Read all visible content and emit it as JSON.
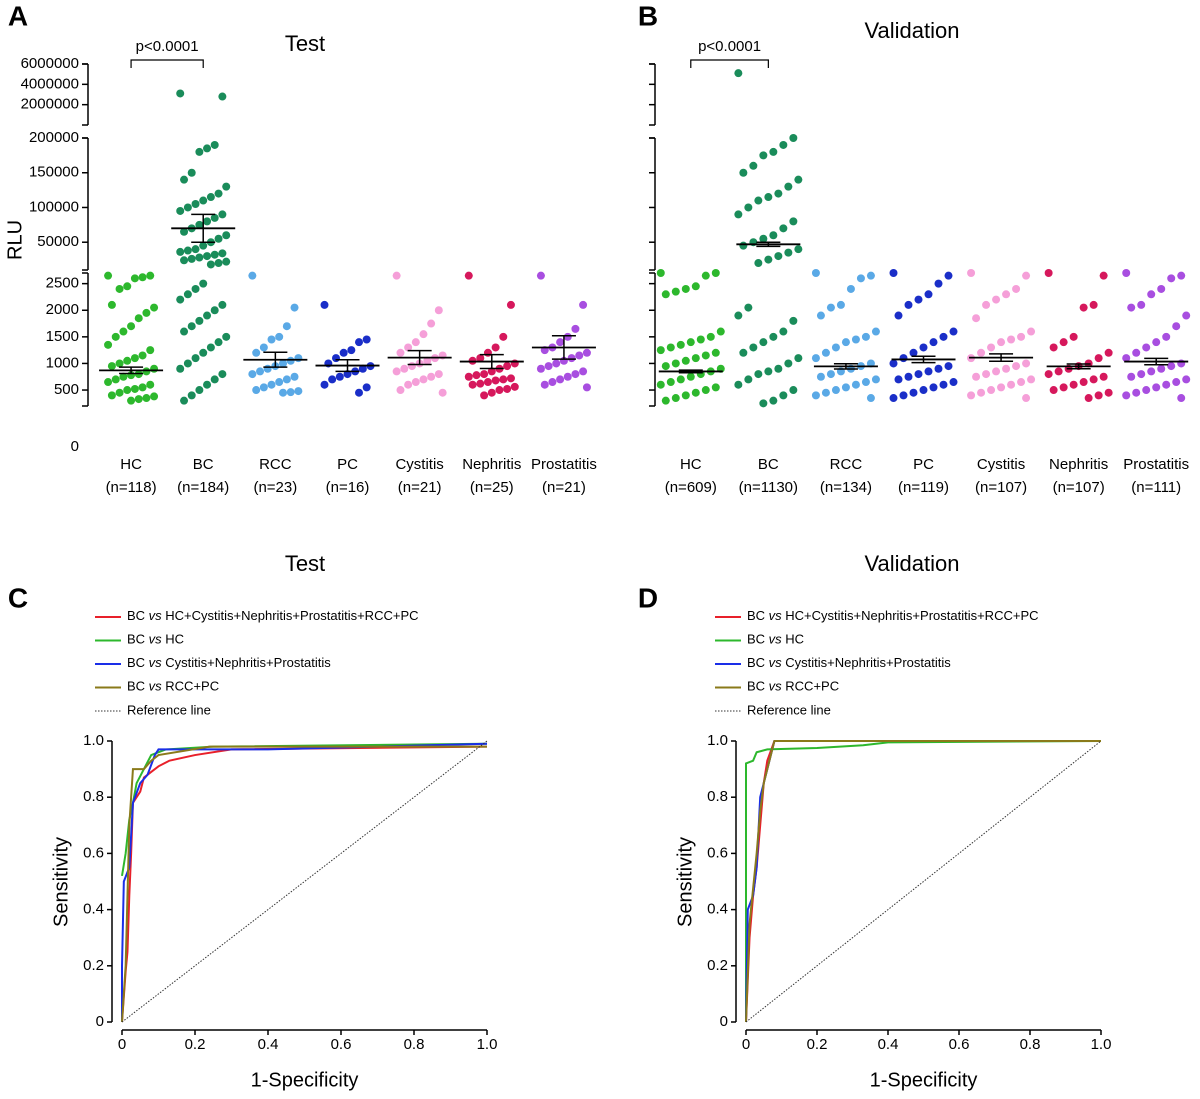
{
  "chart_data": [
    {
      "type": "dot",
      "panel": "A",
      "title": "Test",
      "y_label": "RLU",
      "significance_label": "p<0.0001",
      "origin_tick": 0,
      "tick_labels": true,
      "segments": [
        {
          "ylim": [
            200,
            2700
          ],
          "yticks": [
            500,
            1000,
            1500,
            2000,
            2500
          ]
        },
        {
          "ylim": [
            10000,
            200000
          ],
          "yticks": [
            50000,
            100000,
            150000,
            200000
          ]
        },
        {
          "ylim": [
            0,
            6000000
          ],
          "yticks": [
            2000000,
            4000000,
            6000000
          ]
        }
      ],
      "groups": [
        {
          "name": "HC",
          "n_label": "(n=118)",
          "color": "#2db82d",
          "mean": 870,
          "sem": 60,
          "values": [
            2650,
            2650,
            2620,
            2600,
            2450,
            2400,
            2100,
            2050,
            1950,
            1850,
            1700,
            1600,
            1500,
            1350,
            1250,
            1150,
            1100,
            1050,
            1000,
            950,
            900,
            850,
            800,
            780,
            750,
            700,
            650,
            600,
            550,
            520,
            500,
            450,
            400,
            380,
            350,
            330,
            300
          ]
        },
        {
          "name": "BC",
          "n_label": "(n=184)",
          "color": "#1a8c5a",
          "mean": 70000,
          "sem": 20000,
          "values": [
            3100000,
            2800000,
            190000,
            185000,
            180000,
            150000,
            140000,
            130000,
            120000,
            115000,
            110000,
            105000,
            100000,
            95000,
            90000,
            85000,
            80000,
            75000,
            70000,
            65000,
            60000,
            55000,
            50000,
            45000,
            40000,
            38000,
            36000,
            34000,
            32000,
            30000,
            28000,
            26000,
            24000,
            22000,
            20000,
            18000,
            2500,
            2400,
            2300,
            2200,
            2100,
            2000,
            1900,
            1800,
            1700,
            1600,
            1500,
            1400,
            1300,
            1200,
            1100,
            1000,
            900,
            800,
            700,
            600,
            500,
            400,
            300
          ]
        },
        {
          "name": "RCC",
          "n_label": "(n=23)",
          "color": "#5aa9e6",
          "mean": 1070,
          "sem": 140,
          "values": [
            2650,
            2050,
            1700,
            1500,
            1450,
            1300,
            1200,
            1100,
            1050,
            1000,
            950,
            900,
            850,
            800,
            750,
            700,
            650,
            600,
            550,
            500,
            480,
            460,
            450
          ]
        },
        {
          "name": "PC",
          "n_label": "(n=16)",
          "color": "#1a2ec8",
          "mean": 960,
          "sem": 110,
          "values": [
            2100,
            1450,
            1400,
            1250,
            1200,
            1100,
            1000,
            950,
            900,
            850,
            800,
            750,
            700,
            600,
            550,
            450
          ]
        },
        {
          "name": "Cystitis",
          "n_label": "(n=21)",
          "color": "#f59fd8",
          "mean": 1110,
          "sem": 130,
          "values": [
            2650,
            2000,
            1750,
            1550,
            1400,
            1300,
            1200,
            1150,
            1100,
            1050,
            1000,
            950,
            900,
            850,
            800,
            750,
            700,
            650,
            600,
            500,
            450
          ]
        },
        {
          "name": "Nephritis",
          "n_label": "(n=25)",
          "color": "#d6185c",
          "mean": 1035,
          "sem": 130,
          "values": [
            2650,
            2100,
            1500,
            1300,
            1200,
            1100,
            1050,
            1000,
            950,
            900,
            850,
            800,
            780,
            750,
            720,
            700,
            680,
            650,
            620,
            600,
            560,
            520,
            500,
            450,
            400
          ]
        },
        {
          "name": "Prostatitis",
          "n_label": "(n=21)",
          "color": "#a84ee0",
          "mean": 1300,
          "sem": 220,
          "values": [
            2650,
            2100,
            1650,
            1500,
            1400,
            1300,
            1250,
            1200,
            1150,
            1100,
            1050,
            1000,
            950,
            900,
            850,
            800,
            750,
            700,
            650,
            600,
            550
          ]
        }
      ]
    },
    {
      "type": "dot",
      "panel": "B",
      "title": "Validation",
      "significance_label": "p<0.0001",
      "tick_labels": false,
      "segments": [
        {
          "ylim": [
            200,
            2700
          ],
          "yticks": [
            500,
            1000,
            1500,
            2000,
            2500
          ]
        },
        {
          "ylim": [
            10000,
            200000
          ],
          "yticks": [
            50000,
            100000,
            150000,
            200000
          ]
        },
        {
          "ylim": [
            0,
            6000000
          ],
          "yticks": [
            2000000,
            4000000,
            6000000
          ]
        }
      ],
      "groups": [
        {
          "name": "HC",
          "n_label": "(n=609)",
          "color": "#2db82d",
          "mean": 850,
          "sem": 25,
          "values": [
            2700,
            2700,
            2650,
            2450,
            2400,
            2350,
            2300,
            1600,
            1500,
            1450,
            1400,
            1350,
            1300,
            1250,
            1200,
            1150,
            1100,
            1050,
            1000,
            950,
            900,
            850,
            800,
            750,
            700,
            650,
            600,
            550,
            500,
            450,
            400,
            350,
            300
          ]
        },
        {
          "name": "BC",
          "n_label": "(n=1130)",
          "color": "#1a8c5a",
          "mean": 47000,
          "sem": 3000,
          "values": [
            5100000,
            200000,
            190000,
            180000,
            175000,
            160000,
            150000,
            140000,
            130000,
            120000,
            115000,
            110000,
            100000,
            90000,
            80000,
            70000,
            60000,
            55000,
            50000,
            45000,
            40000,
            35000,
            30000,
            25000,
            20000,
            2050,
            1900,
            1800,
            1600,
            1500,
            1400,
            1300,
            1200,
            1100,
            1000,
            900,
            850,
            800,
            700,
            600,
            500,
            400,
            300,
            250
          ]
        },
        {
          "name": "RCC",
          "n_label": "(n=134)",
          "color": "#5aa9e6",
          "mean": 945,
          "sem": 50,
          "values": [
            2700,
            2650,
            2600,
            2400,
            2100,
            2050,
            1900,
            1600,
            1500,
            1450,
            1400,
            1300,
            1200,
            1100,
            1000,
            950,
            900,
            850,
            800,
            750,
            700,
            650,
            600,
            550,
            500,
            450,
            400,
            350
          ]
        },
        {
          "name": "PC",
          "n_label": "(n=119)",
          "color": "#1a2ec8",
          "mean": 1075,
          "sem": 60,
          "values": [
            2700,
            2650,
            2500,
            2300,
            2200,
            2100,
            1900,
            1600,
            1500,
            1400,
            1300,
            1200,
            1100,
            1000,
            950,
            900,
            850,
            800,
            750,
            700,
            650,
            600,
            550,
            500,
            450,
            400,
            350
          ]
        },
        {
          "name": "Cystitis",
          "n_label": "(n=107)",
          "color": "#f59fd8",
          "mean": 1110,
          "sem": 70,
          "values": [
            2700,
            2650,
            2400,
            2300,
            2200,
            2100,
            1850,
            1600,
            1500,
            1450,
            1400,
            1300,
            1200,
            1100,
            1000,
            950,
            900,
            850,
            800,
            750,
            700,
            650,
            600,
            550,
            500,
            450,
            400,
            350
          ]
        },
        {
          "name": "Nephritis",
          "n_label": "(n=107)",
          "color": "#d6185c",
          "mean": 945,
          "sem": 45,
          "values": [
            2700,
            2650,
            2100,
            2050,
            1500,
            1400,
            1300,
            1200,
            1100,
            1000,
            950,
            900,
            850,
            800,
            750,
            700,
            650,
            600,
            550,
            500,
            450,
            400,
            350
          ]
        },
        {
          "name": "Prostatitis",
          "n_label": "(n=111)",
          "color": "#a84ee0",
          "mean": 1035,
          "sem": 60,
          "values": [
            2700,
            2650,
            2600,
            2400,
            2300,
            2100,
            2050,
            1900,
            1700,
            1500,
            1400,
            1300,
            1200,
            1100,
            1000,
            950,
            900,
            850,
            800,
            750,
            700,
            650,
            600,
            550,
            500,
            450,
            400,
            350
          ]
        }
      ]
    },
    {
      "type": "roc",
      "panel": "C",
      "title": "Test",
      "x_label": "1-Specificity",
      "y_label": "Sensitivity",
      "xlim": [
        0,
        1
      ],
      "ylim": [
        0,
        1
      ],
      "xticks": [
        0,
        0.2,
        0.4,
        0.6,
        0.8,
        {
          "value": 1,
          "label": "1.0"
        }
      ],
      "yticks": [
        0,
        0.2,
        0.4,
        0.6,
        0.8,
        {
          "value": 1,
          "label": "1.0"
        }
      ],
      "series": [
        {
          "name": "BC vs HC+Cystitis+Nephritis+Prostatitis+RCC+PC",
          "color": "#e8202a",
          "x": [
            0,
            0.01,
            0.015,
            0.02,
            0.025,
            0.03,
            0.05,
            0.06,
            0.08,
            0.1,
            0.13,
            0.2,
            0.3,
            1
          ],
          "y": [
            0,
            0.18,
            0.25,
            0.45,
            0.6,
            0.78,
            0.82,
            0.87,
            0.89,
            0.91,
            0.93,
            0.95,
            0.97,
            0.98
          ]
        },
        {
          "name": "BC vs HC",
          "color": "#2db82d",
          "x": [
            0,
            0.01,
            0.02,
            0.03,
            0.04,
            0.06,
            0.08,
            0.12,
            0.25,
            1
          ],
          "y": [
            0.52,
            0.6,
            0.72,
            0.78,
            0.85,
            0.9,
            0.95,
            0.97,
            0.98,
            0.99
          ]
        },
        {
          "name": "BC vs Cystitis+Nephritis+Prostatitis",
          "color": "#1a2ee8",
          "x": [
            0,
            0,
            0.005,
            0.02,
            0.03,
            0.05,
            0.07,
            0.09,
            0.1,
            0.4,
            1
          ],
          "y": [
            0,
            0.2,
            0.5,
            0.55,
            0.78,
            0.85,
            0.88,
            0.95,
            0.97,
            0.97,
            0.99
          ]
        },
        {
          "name": "BC vs RCC+PC",
          "color": "#8a7a1a",
          "x": [
            0,
            0.01,
            0.02,
            0.03,
            0.06,
            0.08,
            0.1,
            0.24,
            1
          ],
          "y": [
            0,
            0.2,
            0.7,
            0.9,
            0.9,
            0.93,
            0.95,
            0.98,
            0.98
          ]
        },
        {
          "name": "Reference line",
          "color": "#333333",
          "dashed": true,
          "x": [
            0,
            1
          ],
          "y": [
            0,
            1
          ]
        }
      ]
    },
    {
      "type": "roc",
      "panel": "D",
      "title": "Validation",
      "x_label": "1-Specificity",
      "y_label": "Sensitivity",
      "xlim": [
        0,
        1
      ],
      "ylim": [
        0,
        1
      ],
      "xticks": [
        0,
        0.2,
        0.4,
        0.6,
        0.8,
        {
          "value": 1,
          "label": "1.0"
        }
      ],
      "yticks": [
        0,
        0.2,
        0.4,
        0.6,
        0.8,
        {
          "value": 1,
          "label": "1.0"
        }
      ],
      "series": [
        {
          "name": "BC vs HC+Cystitis+Nephritis+Prostatitis+RCC+PC",
          "color": "#e8202a",
          "x": [
            0,
            0.01,
            0.02,
            0.03,
            0.04,
            0.05,
            0.06,
            0.08,
            1
          ],
          "y": [
            0,
            0.3,
            0.45,
            0.55,
            0.7,
            0.85,
            0.93,
            1,
            1
          ]
        },
        {
          "name": "BC vs HC",
          "color": "#2db82d",
          "x": [
            0,
            0,
            0.02,
            0.03,
            0.06,
            0.2,
            0.33,
            0.4,
            1
          ],
          "y": [
            0,
            0.92,
            0.93,
            0.96,
            0.97,
            0.975,
            0.985,
            0.995,
            1
          ]
        },
        {
          "name": "BC vs Cystitis+Nephritis+Prostatitis",
          "color": "#1a2ee8",
          "x": [
            0,
            0.005,
            0.02,
            0.03,
            0.04,
            0.06,
            0.07,
            0.08,
            1
          ],
          "y": [
            0,
            0.4,
            0.45,
            0.55,
            0.8,
            0.9,
            0.95,
            1,
            1
          ]
        },
        {
          "name": "BC vs RCC+PC",
          "color": "#8a7a1a",
          "x": [
            0,
            0.01,
            0.03,
            0.04,
            0.05,
            0.07,
            0.08,
            1
          ],
          "y": [
            0,
            0.35,
            0.6,
            0.75,
            0.85,
            0.95,
            1,
            1
          ]
        },
        {
          "name": "Reference line",
          "color": "#333333",
          "dashed": true,
          "x": [
            0,
            1
          ],
          "y": [
            0,
            1
          ]
        }
      ]
    }
  ]
}
